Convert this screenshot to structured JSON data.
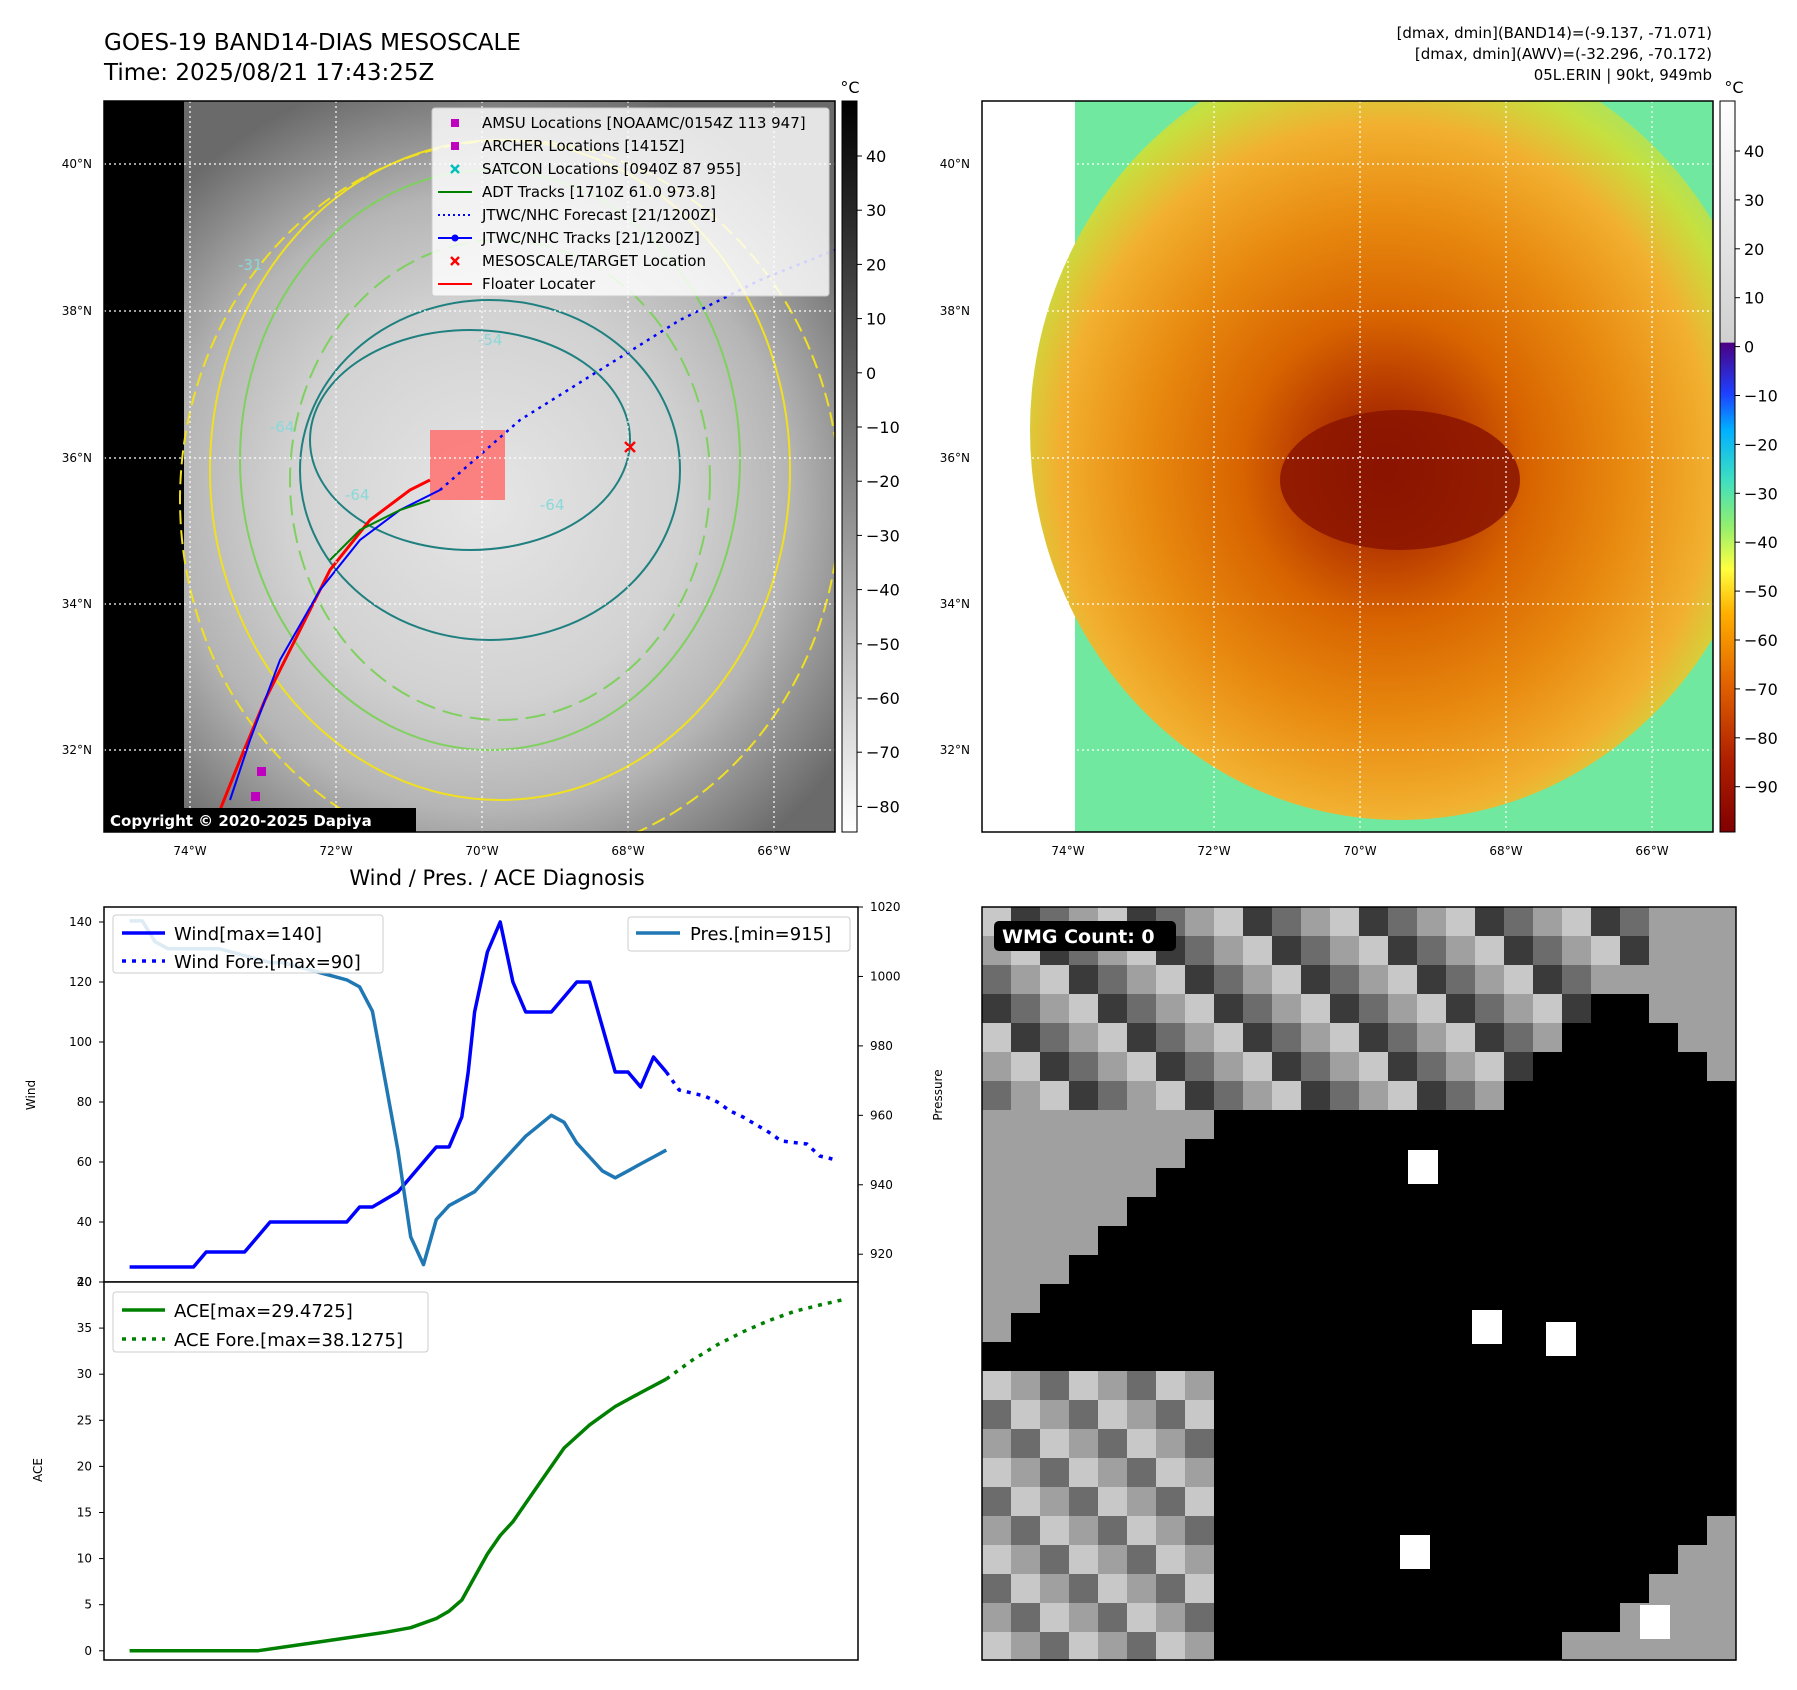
{
  "header": {
    "title_line1": "GOES-19 BAND14-DIAS MESOSCALE",
    "title_line2": "Time: 2025/08/21 17:43:25Z",
    "info_line1": "[dmax, dmin](BAND14)=(-9.137, -71.071)",
    "info_line2": "[dmax, dmin](AWV)=(-32.296, -70.172)",
    "info_line3": "05L.ERIN | 90kt, 949mb"
  },
  "map": {
    "lat_labels": [
      "40°N",
      "38°N",
      "36°N",
      "34°N",
      "32°N"
    ],
    "lon_labels": [
      "74°W",
      "72°W",
      "70°W",
      "68°W",
      "66°W"
    ],
    "copyright": "Copyright © 2020-2025 Dapiya",
    "contour_labels": [
      "-54",
      "-64",
      "-64",
      "-64",
      "-31"
    ],
    "legend": [
      {
        "label": "AMSU Locations [NOAAMC/0154Z 113 947]",
        "color": "#bf00bf",
        "marker": "square"
      },
      {
        "label": "ARCHER Locations [1415Z]",
        "color": "#bf00bf",
        "marker": "square"
      },
      {
        "label": "SATCON Locations [0940Z 87 955]",
        "color": "#00bfbf",
        "marker": "x"
      },
      {
        "label": "ADT Tracks [1710Z 61.0 973.8]",
        "color": "#008000",
        "marker": "line"
      },
      {
        "label": "JTWC/NHC Forecast [21/1200Z]",
        "color": "#0000ff",
        "marker": "dotted"
      },
      {
        "label": "JTWC/NHC Tracks [21/1200Z]",
        "color": "#0000ff",
        "marker": "line-dot"
      },
      {
        "label": "MESOSCALE/TARGET Location",
        "color": "#ff0000",
        "marker": "x"
      },
      {
        "label": "Floater Locater",
        "color": "#ff0000",
        "marker": "line"
      }
    ]
  },
  "colorbar_gray": {
    "unit": "°C",
    "ticks": [
      "40",
      "30",
      "20",
      "10",
      "0",
      "−10",
      "−20",
      "−30",
      "−40",
      "−50",
      "−60",
      "−70",
      "−80"
    ]
  },
  "colorbar_color": {
    "unit": "°C",
    "ticks": [
      "40",
      "30",
      "20",
      "10",
      "0",
      "−10",
      "−20",
      "−30",
      "−40",
      "−50",
      "−60",
      "−70",
      "−80",
      "−90"
    ]
  },
  "wmg": {
    "label": "WMG Count: 0"
  },
  "chart_data": [
    {
      "type": "line",
      "title": "Wind / Pres. / ACE Diagnosis",
      "ylabel": "Wind",
      "y2label": "Pressure",
      "ylim": [
        20,
        145
      ],
      "y2lim": [
        912,
        1020
      ],
      "yticks": [
        "20",
        "40",
        "60",
        "80",
        "100",
        "120",
        "140"
      ],
      "y2ticks": [
        "920",
        "940",
        "960",
        "980",
        "1000",
        "1020"
      ],
      "legend_left": [
        "Wind[max=140]",
        "Wind Fore.[max=90]"
      ],
      "legend_right": [
        "Pres.[min=915]"
      ],
      "series": [
        {
          "name": "Wind[max=140]",
          "color": "#0000ff",
          "style": "solid",
          "x": [
            0,
            5,
            6,
            9,
            10,
            11,
            12,
            17,
            18,
            19,
            21,
            22,
            23,
            24,
            25,
            26,
            26.5,
            27,
            28,
            29,
            30,
            31,
            32,
            33,
            34,
            35,
            36,
            37,
            38,
            39,
            40,
            41,
            42
          ],
          "values": [
            25,
            25,
            30,
            30,
            35,
            40,
            40,
            40,
            45,
            45,
            50,
            55,
            60,
            65,
            65,
            75,
            90,
            110,
            130,
            140,
            120,
            110,
            110,
            110,
            115,
            120,
            120,
            105,
            90,
            90,
            85,
            95,
            90
          ]
        },
        {
          "name": "Wind Fore.[max=90]",
          "color": "#0000ff",
          "style": "dotted",
          "x": [
            42,
            43,
            45,
            46,
            47,
            48,
            50,
            51,
            53,
            54,
            55
          ],
          "values": [
            90,
            84,
            82,
            80,
            77,
            75,
            70,
            67,
            66,
            62,
            61
          ]
        },
        {
          "name": "Pres.[min=915]",
          "color": "#1f77b4",
          "style": "solid",
          "axis": "right",
          "x": [
            0,
            1,
            2,
            3,
            4,
            5,
            6,
            7,
            8,
            9,
            10,
            11,
            12,
            13,
            14,
            15,
            16,
            17,
            18,
            19,
            20,
            21,
            22,
            23,
            24,
            25,
            26,
            27,
            28,
            29,
            30,
            31,
            32,
            33,
            34,
            35,
            36,
            37,
            38,
            39,
            40,
            41,
            42
          ],
          "values": [
            1016,
            1016,
            1010,
            1008,
            1008,
            1008,
            1008,
            1008,
            1007,
            1006,
            1005,
            1004,
            1004,
            1003,
            1002,
            1001,
            1000,
            999,
            997,
            990,
            970,
            950,
            925,
            917,
            930,
            934,
            936,
            938,
            942,
            946,
            950,
            954,
            957,
            960,
            958,
            952,
            948,
            944,
            942,
            944,
            946,
            948,
            950
          ]
        }
      ]
    },
    {
      "type": "line",
      "ylabel": "ACE",
      "ylim": [
        -1,
        40
      ],
      "yticks": [
        "0",
        "5",
        "10",
        "15",
        "20",
        "25",
        "30",
        "35",
        "40"
      ],
      "legend": [
        "ACE[max=29.4725]",
        "ACE Fore.[max=38.1275]"
      ],
      "series": [
        {
          "name": "ACE[max=29.4725]",
          "color": "#008000",
          "style": "solid",
          "x": [
            0,
            5,
            10,
            15,
            20,
            22,
            24,
            25,
            26,
            27,
            28,
            29,
            30,
            31,
            32,
            34,
            36,
            38,
            40,
            42
          ],
          "values": [
            0,
            0,
            0,
            1,
            2,
            2.5,
            3.5,
            4.3,
            5.5,
            8,
            10.5,
            12.5,
            14,
            16,
            18,
            22,
            24.5,
            26.5,
            28,
            29.47
          ]
        },
        {
          "name": "ACE Fore.[max=38.1275]",
          "color": "#008000",
          "style": "dotted",
          "x": [
            42,
            44,
            46,
            48,
            50,
            52,
            54,
            56
          ],
          "values": [
            29.47,
            31.5,
            33.2,
            34.6,
            35.8,
            36.8,
            37.5,
            38.13
          ]
        }
      ]
    }
  ]
}
